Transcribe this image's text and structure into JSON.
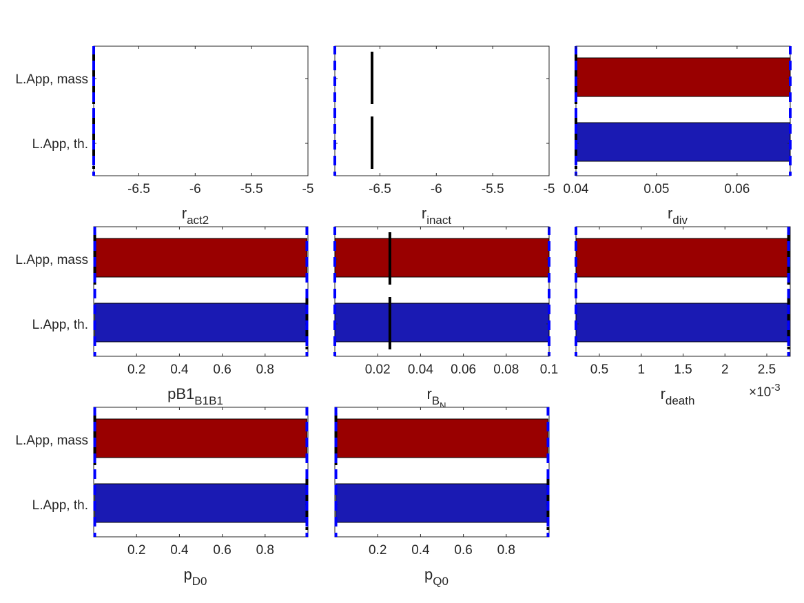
{
  "figure": {
    "colors": {
      "mass_bar": "#990000",
      "th_bar": "#1a1ab3",
      "bound_line": "#0000ff",
      "estimate_line": "#000000",
      "axis": "#262626"
    }
  },
  "chart_data": [
    {
      "type": "bar",
      "orientation": "horizontal",
      "categories": [
        "L.App, mass",
        "L.App, th."
      ],
      "xlim": [
        -6.9,
        -5
      ],
      "xticks": [
        -6.5,
        -6,
        -5.5,
        -5
      ],
      "xlabel": "r",
      "xlabel_subscript": "act2",
      "bars": [],
      "bounds": [
        -6.9,
        -6.9
      ],
      "estimates": [
        -6.9,
        -6.9
      ],
      "xexponent": ""
    },
    {
      "type": "bar",
      "orientation": "horizontal",
      "categories": [
        "L.App, mass",
        "L.App, th."
      ],
      "xlim": [
        -6.9,
        -5
      ],
      "xticks": [
        -6.5,
        -6,
        -5.5,
        -5
      ],
      "xlabel": "r",
      "xlabel_subscript": "inact",
      "bars": [],
      "bounds": [
        -6.9,
        -6.9
      ],
      "estimates": [
        -6.57,
        -6.57
      ],
      "xexponent": ""
    },
    {
      "type": "bar",
      "orientation": "horizontal",
      "categories": [
        "L.App, mass",
        "L.App, th."
      ],
      "xlim": [
        0.04,
        0.0666
      ],
      "xticks": [
        0.04,
        0.05,
        0.06
      ],
      "xlabel": "r",
      "xlabel_subscript": "div",
      "bars": [
        [
          0.04,
          0.0666
        ],
        [
          0.04,
          0.0666
        ]
      ],
      "bounds": [
        0.04,
        0.0666
      ],
      "estimates": [
        0.04,
        0.04
      ],
      "xexponent": ""
    },
    {
      "type": "bar",
      "orientation": "horizontal",
      "categories": [
        "L.App, mass",
        "L.App, th."
      ],
      "xlim": [
        0,
        1
      ],
      "xticks": [
        0.2,
        0.4,
        0.6,
        0.8
      ],
      "xlabel": "pB1",
      "xlabel_subscript": "B1B1",
      "bars": [
        [
          0.005,
          0.995
        ],
        [
          0.005,
          0.995
        ]
      ],
      "bounds": [
        0.005,
        0.995
      ],
      "estimates": [
        0.005,
        0.995
      ],
      "xexponent": ""
    },
    {
      "type": "bar",
      "orientation": "horizontal",
      "categories": [
        "L.App, mass",
        "L.App, th."
      ],
      "xlim": [
        0,
        0.1
      ],
      "xticks": [
        0.02,
        0.04,
        0.06,
        0.08,
        0.1
      ],
      "xlabel": "r",
      "xlabel_subscript": "B_N",
      "bars": [
        [
          0,
          0.1
        ],
        [
          0,
          0.1
        ]
      ],
      "bounds": [
        0,
        0.1
      ],
      "estimates": [
        0.0257,
        0.0257
      ],
      "xexponent": ""
    },
    {
      "type": "bar",
      "orientation": "horizontal",
      "categories": [
        "L.App, mass",
        "L.App, th."
      ],
      "xlim": [
        0.22,
        2.78
      ],
      "xticks": [
        0.5,
        1,
        1.5,
        2,
        2.5
      ],
      "xlabel": "r",
      "xlabel_subscript": "death",
      "bars": [
        [
          0.22,
          2.76
        ],
        [
          0.22,
          2.76
        ]
      ],
      "bounds": [
        0.22,
        2.76
      ],
      "estimates": [
        2.76,
        2.76
      ],
      "xexponent": "×10"
    },
    {
      "type": "bar",
      "orientation": "horizontal",
      "categories": [
        "L.App, mass",
        "L.App, th."
      ],
      "xlim": [
        0,
        1
      ],
      "xticks": [
        0.2,
        0.4,
        0.6,
        0.8
      ],
      "xlabel": "p",
      "xlabel_subscript": "D0",
      "bars": [
        [
          0.005,
          0.995
        ],
        [
          0.005,
          0.995
        ]
      ],
      "bounds": [
        0.005,
        0.995
      ],
      "estimates": [
        0.005,
        0.995
      ],
      "xexponent": ""
    },
    {
      "type": "bar",
      "orientation": "horizontal",
      "categories": [
        "L.App, mass",
        "L.App, th."
      ],
      "xlim": [
        0,
        1
      ],
      "xticks": [
        0.2,
        0.4,
        0.6,
        0.8
      ],
      "xlabel": "p",
      "xlabel_subscript": "Q0",
      "bars": [
        [
          0.005,
          0.995
        ],
        [
          0.005,
          0.995
        ]
      ],
      "bounds": [
        0.005,
        0.995
      ],
      "estimates": [
        0.005,
        0.995
      ],
      "xexponent": ""
    }
  ],
  "exponent_power": "-3"
}
